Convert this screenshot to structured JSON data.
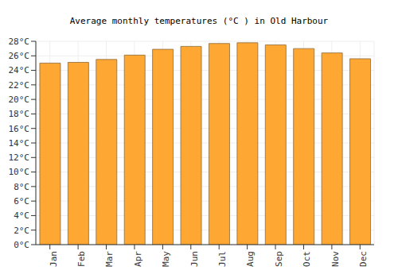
{
  "chart_data": {
    "type": "bar",
    "title": "Average monthly temperatures (°C ) in Old Harbour",
    "categories": [
      "Jan",
      "Feb",
      "Mar",
      "Apr",
      "May",
      "Jun",
      "Jul",
      "Aug",
      "Sep",
      "Oct",
      "Nov",
      "Dec"
    ],
    "values": [
      25.0,
      25.1,
      25.5,
      26.1,
      26.9,
      27.3,
      27.7,
      27.8,
      27.5,
      27.0,
      26.4,
      25.6
    ],
    "color": "#ffa733",
    "ylim": [
      0,
      28
    ],
    "yticks": [
      {
        "value": 0,
        "label": "0°C"
      },
      {
        "value": 2,
        "label": "2°C"
      },
      {
        "value": 4,
        "label": "4°C"
      },
      {
        "value": 6,
        "label": "6°C"
      },
      {
        "value": 8,
        "label": "8°C"
      },
      {
        "value": 10,
        "label": "10°C"
      },
      {
        "value": 12,
        "label": "12°C"
      },
      {
        "value": 14,
        "label": "14°C"
      },
      {
        "value": 16,
        "label": "16°C"
      },
      {
        "value": 18,
        "label": "18°C"
      },
      {
        "value": 20,
        "label": "20°C"
      },
      {
        "value": 22,
        "label": "22°C"
      },
      {
        "value": 24,
        "label": "24°C"
      },
      {
        "value": 26,
        "label": "26°C"
      },
      {
        "value": 28,
        "label": "28°C"
      }
    ],
    "grid": true
  }
}
